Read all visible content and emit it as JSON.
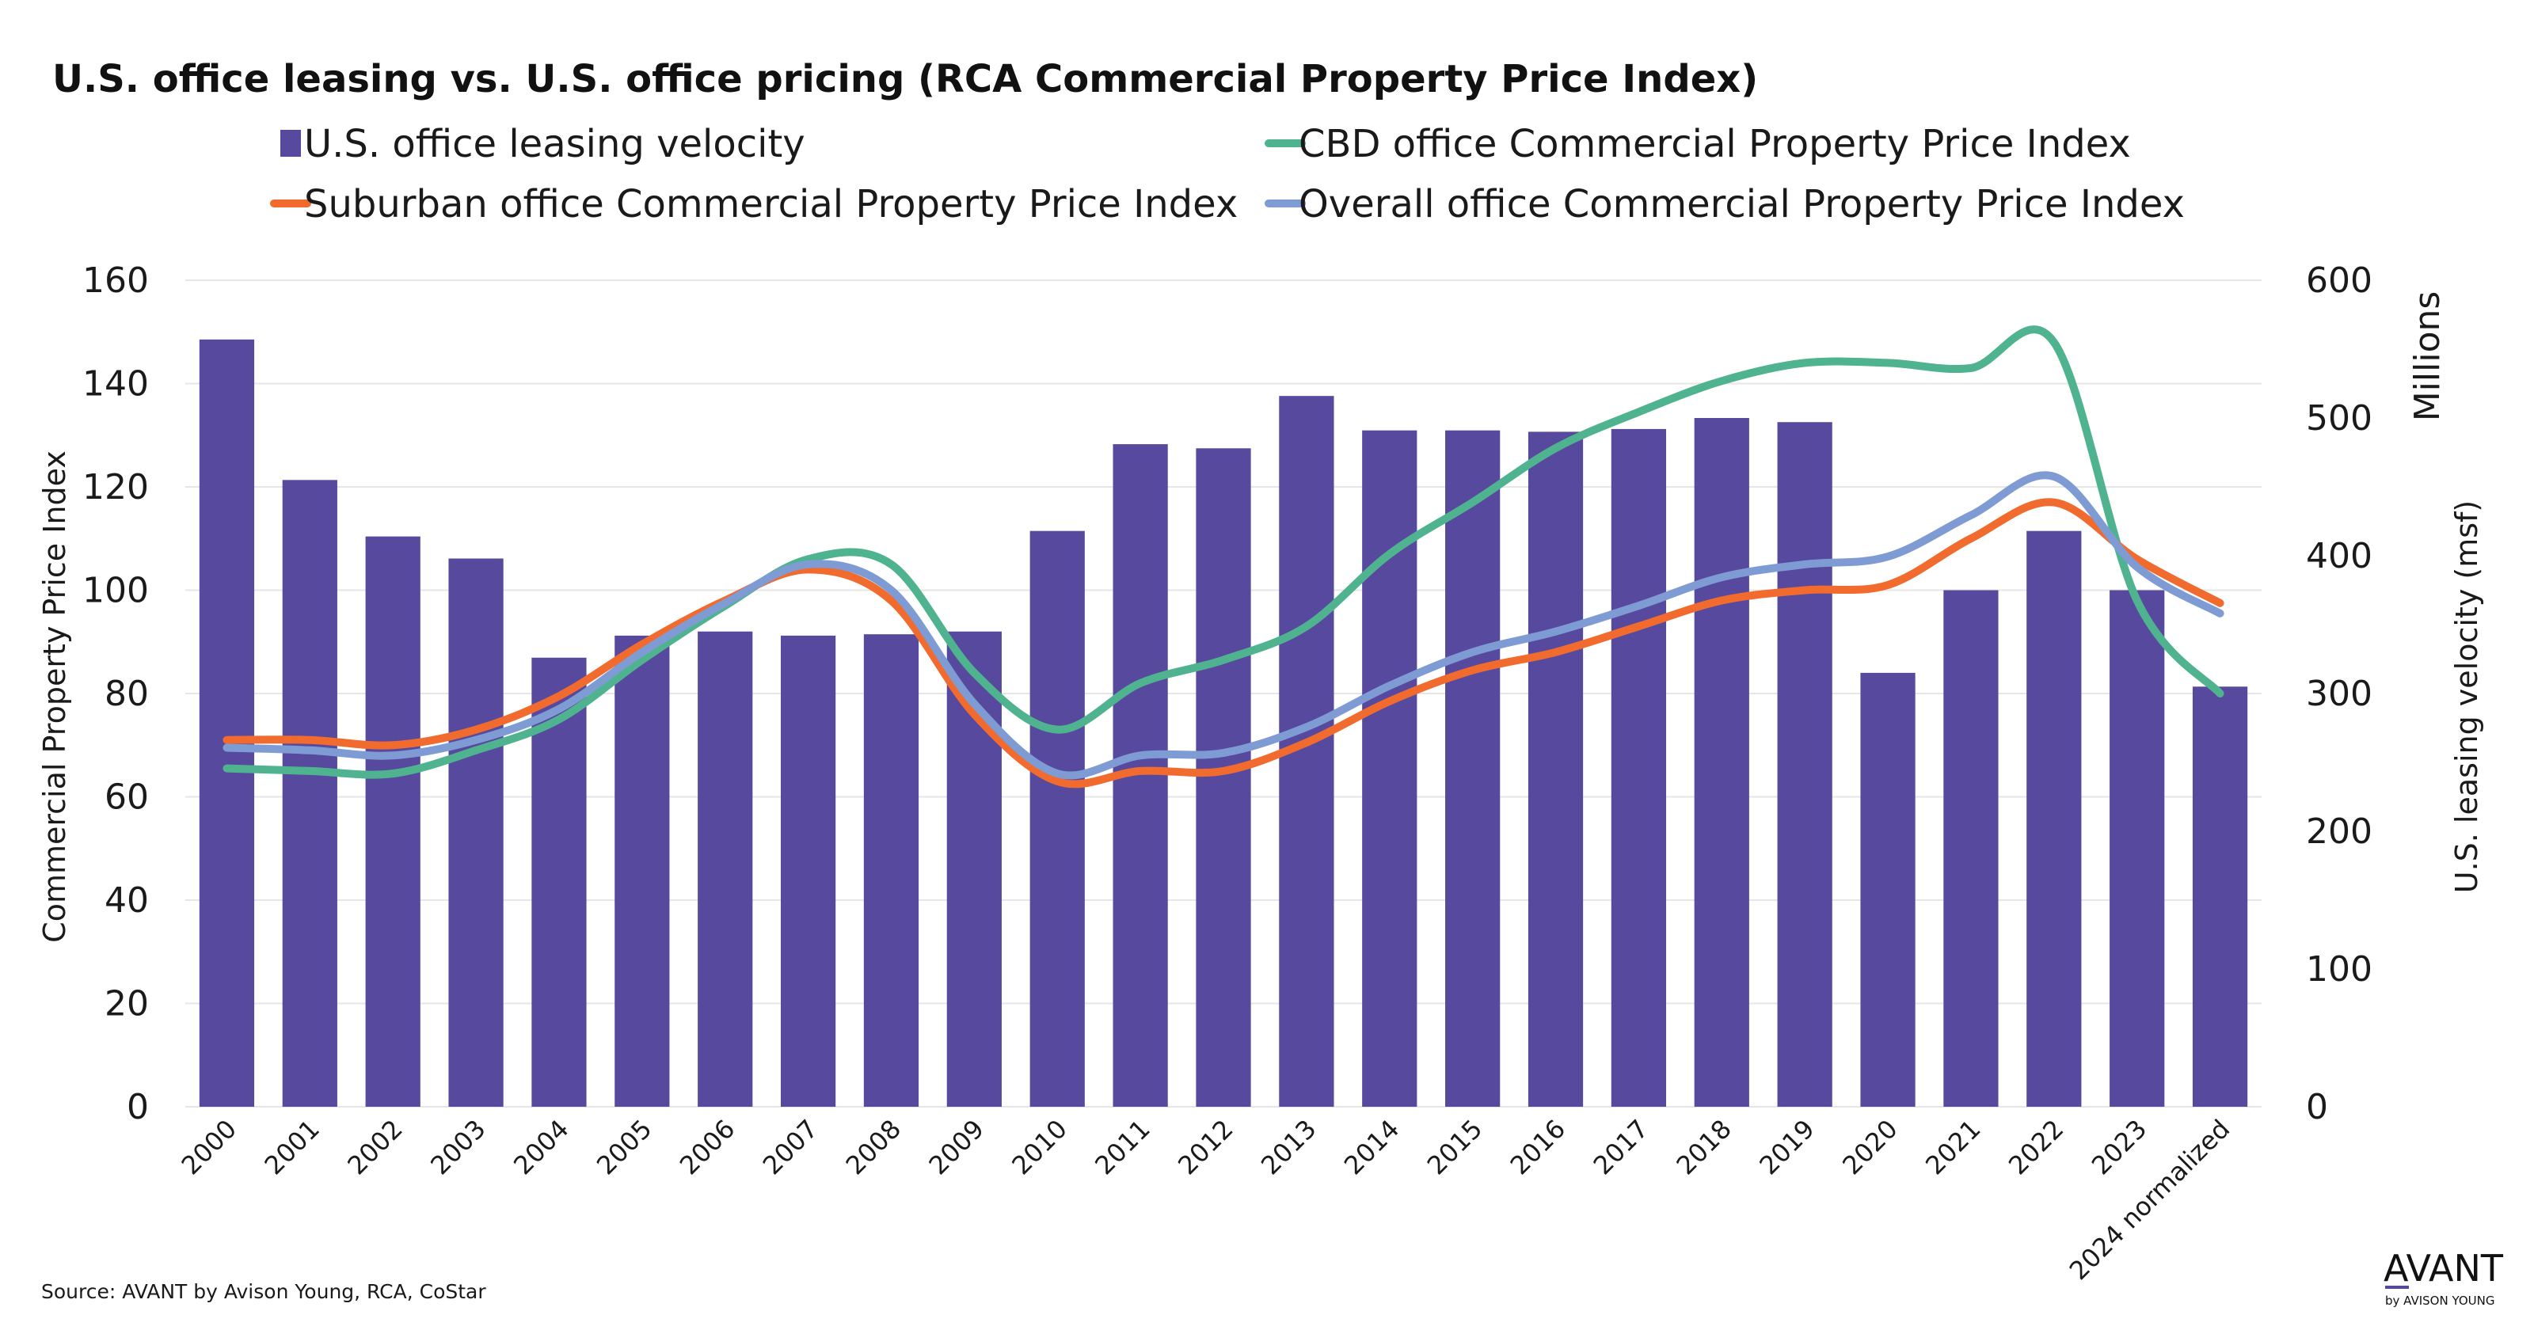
{
  "chart_data": {
    "type": "bar",
    "title": "U.S. office leasing vs. U.S. office pricing (RCA Commercial Property Price Index)",
    "categories": [
      "2000",
      "2001",
      "2002",
      "2003",
      "2004",
      "2005",
      "2006",
      "2007",
      "2008",
      "2009",
      "2010",
      "2011",
      "2012",
      "2013",
      "2014",
      "2015",
      "2016",
      "2017",
      "2018",
      "2019",
      "2020",
      "2021",
      "2022",
      "2023",
      "2024 normalized"
    ],
    "bar_series": {
      "name": "U.S. office leasing velocity",
      "axis": "right",
      "color": "#574a9e",
      "values": [
        557,
        455,
        414,
        398,
        326,
        342,
        345,
        342,
        343,
        345,
        418,
        481,
        478,
        516,
        491,
        491,
        490,
        492,
        500,
        497,
        315,
        375,
        418,
        375,
        305
      ]
    },
    "line_series": [
      {
        "name": "CBD office Commercial Property Price Index",
        "color": "#4fb38f",
        "axis": "left",
        "values": [
          65.5,
          65,
          64.5,
          69,
          75,
          86.5,
          97,
          106,
          105,
          84,
          73,
          82,
          86.5,
          93,
          107,
          117,
          127.5,
          134.5,
          140.5,
          144,
          144,
          143,
          148,
          98,
          80
        ]
      },
      {
        "name": "Suburban office Commercial Property Price Index",
        "color": "#f26b2e",
        "axis": "left",
        "values": [
          71,
          71,
          70,
          73,
          79.5,
          89.5,
          98,
          104,
          98,
          76,
          63,
          65,
          65,
          70.5,
          78.5,
          84.5,
          88,
          93,
          98,
          100,
          101,
          110,
          117,
          106,
          97.5
        ]
      },
      {
        "name": "Overall office  Commercial Property Price Index",
        "color": "#7f9bd4",
        "axis": "left",
        "values": [
          69.5,
          69,
          68,
          71,
          77,
          88,
          97.5,
          105,
          100,
          78,
          64.5,
          68,
          68.5,
          73.5,
          81.5,
          88,
          92,
          97,
          102.5,
          105,
          106.5,
          114.5,
          122,
          104.5,
          95.5
        ]
      }
    ],
    "legend": [
      {
        "label": "U.S. office leasing velocity",
        "marker": "square",
        "color": "#574a9e"
      },
      {
        "label": "CBD office Commercial Property Price Index",
        "marker": "line",
        "color": "#4fb38f"
      },
      {
        "label": "Suburban office Commercial Property Price Index",
        "marker": "line",
        "color": "#f26b2e"
      },
      {
        "label": "Overall office  Commercial Property Price Index",
        "marker": "line",
        "color": "#7f9bd4"
      }
    ],
    "legend_position": "top",
    "ylabel_left": "Commercial Property Price Index",
    "ylabel_right": "U.S. leasing velocity (msf)",
    "right_axis_unit": "Millions",
    "ylim_left": [
      0,
      160
    ],
    "ylim_right": [
      0,
      600
    ],
    "yticks_left": [
      "0",
      "20",
      "40",
      "60",
      "80",
      "100",
      "120",
      "140",
      "160"
    ],
    "yticks_right": [
      "0",
      "100",
      "200",
      "300",
      "400",
      "500",
      "600"
    ],
    "grid": true
  },
  "footer": {
    "source": "Source:  AVANT by Avison Young, RCA, CoStar",
    "logo_main": "AVANT",
    "logo_sub": "by AVISON YOUNG"
  }
}
